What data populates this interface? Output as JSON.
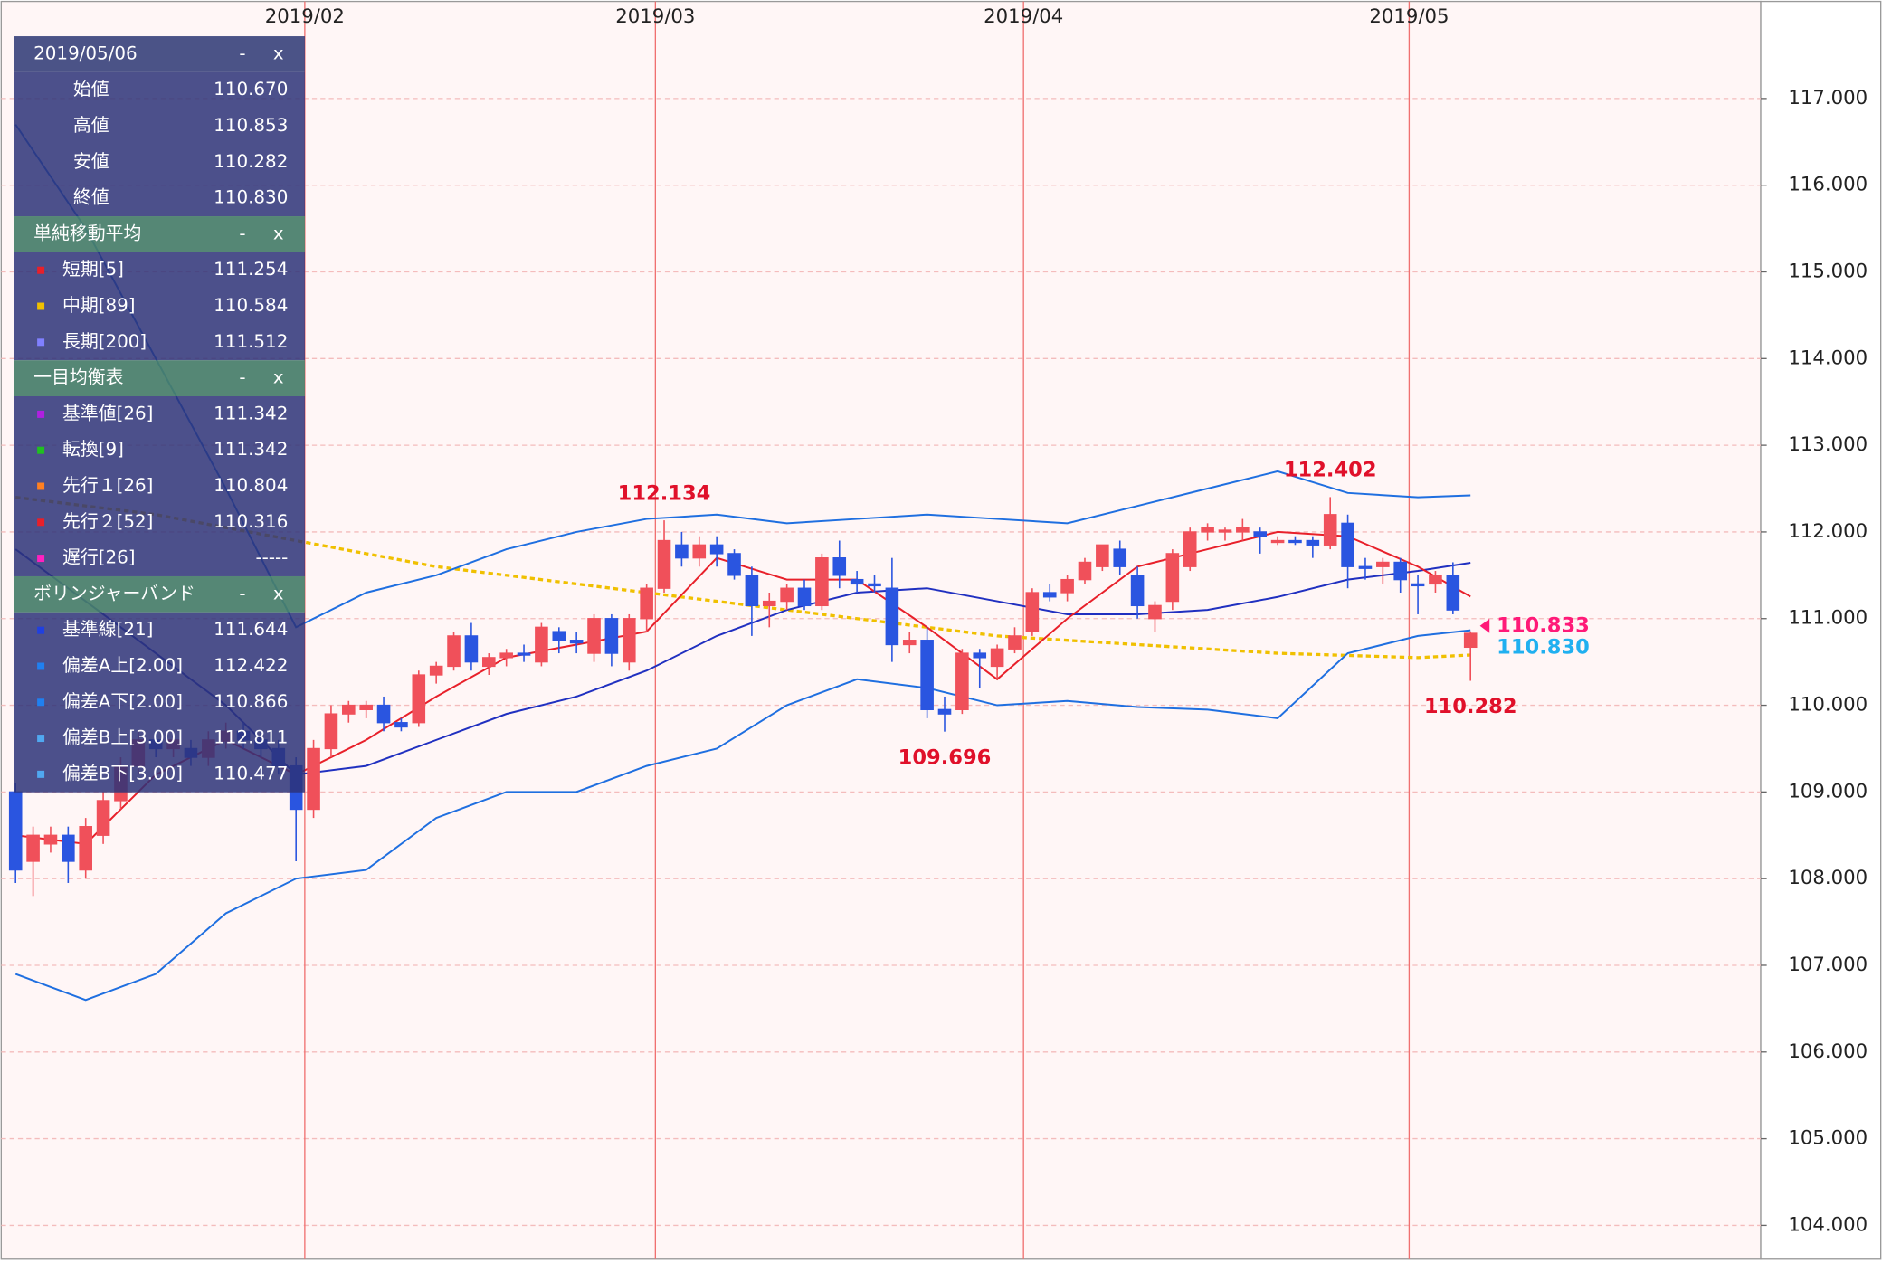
{
  "chart_data": {
    "type": "candlestick",
    "xlim": [
      -0.82,
      99.56
    ],
    "ylim": [
      103.61,
      118.12
    ],
    "xticks": [
      {
        "value": 16.5,
        "label": "2019/02"
      },
      {
        "value": 36.5,
        "label": "2019/03"
      },
      {
        "value": 57.5,
        "label": "2019/04"
      },
      {
        "value": 79.5,
        "label": "2019/05"
      }
    ],
    "yticks": [
      {
        "value": 104,
        "label": "104.000"
      },
      {
        "value": 105,
        "label": "105.000"
      },
      {
        "value": 106,
        "label": "106.000"
      },
      {
        "value": 107,
        "label": "107.000"
      },
      {
        "value": 108,
        "label": "108.000"
      },
      {
        "value": 109,
        "label": "109.000"
      },
      {
        "value": 110,
        "label": "110.000"
      },
      {
        "value": 111,
        "label": "111.000"
      },
      {
        "value": 112,
        "label": "112.000"
      },
      {
        "value": 113,
        "label": "113.000"
      },
      {
        "value": 114,
        "label": "114.000"
      },
      {
        "value": 115,
        "label": "115.000"
      },
      {
        "value": 116,
        "label": "116.000"
      },
      {
        "value": 117,
        "label": "117.000"
      }
    ],
    "grid": true,
    "up_color": "#f0505a",
    "down_color": "#2a55e0",
    "ohlc": [
      [
        109.0,
        109.1,
        107.95,
        108.1
      ],
      [
        108.2,
        108.6,
        107.8,
        108.5
      ],
      [
        108.4,
        108.6,
        108.3,
        108.5
      ],
      [
        108.5,
        108.6,
        107.95,
        108.2
      ],
      [
        108.1,
        108.7,
        108.0,
        108.6
      ],
      [
        108.5,
        109.0,
        108.4,
        108.9
      ],
      [
        108.9,
        109.4,
        108.8,
        109.3
      ],
      [
        109.3,
        109.7,
        109.2,
        109.6
      ],
      [
        109.6,
        109.7,
        109.4,
        109.5
      ],
      [
        109.5,
        109.7,
        109.4,
        109.6
      ],
      [
        109.5,
        109.6,
        109.3,
        109.4
      ],
      [
        109.4,
        109.7,
        109.3,
        109.6
      ],
      [
        109.6,
        109.8,
        109.5,
        109.7
      ],
      [
        109.7,
        109.8,
        109.5,
        109.6
      ],
      [
        109.6,
        109.7,
        109.4,
        109.5
      ],
      [
        109.5,
        109.6,
        109.2,
        109.3
      ],
      [
        109.3,
        109.4,
        108.2,
        108.8
      ],
      [
        108.8,
        109.6,
        108.7,
        109.5
      ],
      [
        109.5,
        110.0,
        109.4,
        109.9
      ],
      [
        109.9,
        110.05,
        109.8,
        110.0
      ],
      [
        109.95,
        110.05,
        109.85,
        110.0
      ],
      [
        110.0,
        110.1,
        109.7,
        109.8
      ],
      [
        109.8,
        109.85,
        109.7,
        109.75
      ],
      [
        109.8,
        110.4,
        109.75,
        110.35
      ],
      [
        110.35,
        110.5,
        110.25,
        110.45
      ],
      [
        110.45,
        110.85,
        110.4,
        110.8
      ],
      [
        110.8,
        110.95,
        110.4,
        110.5
      ],
      [
        110.45,
        110.6,
        110.35,
        110.55
      ],
      [
        110.55,
        110.65,
        110.45,
        110.6
      ],
      [
        110.6,
        110.7,
        110.5,
        110.58
      ],
      [
        110.5,
        110.95,
        110.45,
        110.9
      ],
      [
        110.85,
        110.9,
        110.6,
        110.75
      ],
      [
        110.75,
        110.85,
        110.6,
        110.72
      ],
      [
        110.6,
        111.05,
        110.5,
        111.0
      ],
      [
        111.0,
        111.05,
        110.45,
        110.6
      ],
      [
        110.5,
        111.05,
        110.4,
        111.0
      ],
      [
        111.0,
        111.4,
        110.85,
        111.35
      ],
      [
        111.35,
        112.134,
        111.3,
        111.9
      ],
      [
        111.85,
        112.0,
        111.6,
        111.7
      ],
      [
        111.7,
        111.95,
        111.6,
        111.85
      ],
      [
        111.85,
        111.95,
        111.6,
        111.75
      ],
      [
        111.75,
        111.8,
        111.45,
        111.5
      ],
      [
        111.5,
        111.6,
        110.8,
        111.15
      ],
      [
        111.15,
        111.3,
        110.9,
        111.2
      ],
      [
        111.2,
        111.4,
        111.1,
        111.35
      ],
      [
        111.35,
        111.45,
        111.1,
        111.15
      ],
      [
        111.15,
        111.75,
        111.1,
        111.7
      ],
      [
        111.7,
        111.9,
        111.35,
        111.5
      ],
      [
        111.45,
        111.55,
        111.3,
        111.4
      ],
      [
        111.4,
        111.5,
        111.3,
        111.38
      ],
      [
        111.35,
        111.7,
        110.5,
        110.7
      ],
      [
        110.7,
        110.85,
        110.6,
        110.75
      ],
      [
        110.75,
        110.9,
        109.85,
        109.95
      ],
      [
        109.95,
        110.1,
        109.696,
        109.9
      ],
      [
        109.95,
        110.65,
        109.9,
        110.6
      ],
      [
        110.6,
        110.65,
        110.2,
        110.55
      ],
      [
        110.45,
        110.7,
        110.3,
        110.65
      ],
      [
        110.65,
        110.9,
        110.6,
        110.8
      ],
      [
        110.85,
        111.35,
        110.8,
        111.3
      ],
      [
        111.3,
        111.4,
        111.2,
        111.25
      ],
      [
        111.3,
        111.5,
        111.2,
        111.45
      ],
      [
        111.45,
        111.7,
        111.4,
        111.65
      ],
      [
        111.6,
        111.85,
        111.55,
        111.85
      ],
      [
        111.8,
        111.9,
        111.5,
        111.6
      ],
      [
        111.5,
        111.6,
        111.0,
        111.15
      ],
      [
        111.0,
        111.2,
        110.85,
        111.15
      ],
      [
        111.2,
        111.8,
        111.1,
        111.75
      ],
      [
        111.6,
        112.05,
        111.55,
        112.0
      ],
      [
        112.0,
        112.1,
        111.9,
        112.05
      ],
      [
        112.0,
        112.05,
        111.9,
        112.02
      ],
      [
        112.0,
        112.15,
        111.9,
        112.05
      ],
      [
        112.0,
        112.05,
        111.75,
        111.95
      ],
      [
        111.9,
        111.95,
        111.85,
        111.9
      ],
      [
        111.9,
        111.95,
        111.85,
        111.88
      ],
      [
        111.9,
        111.95,
        111.7,
        111.85
      ],
      [
        111.85,
        112.402,
        111.8,
        112.2
      ],
      [
        112.1,
        112.2,
        111.35,
        111.6
      ],
      [
        111.6,
        111.7,
        111.45,
        111.58
      ],
      [
        111.6,
        111.7,
        111.4,
        111.65
      ],
      [
        111.65,
        111.7,
        111.3,
        111.45
      ],
      [
        111.4,
        111.5,
        111.05,
        111.38
      ],
      [
        111.4,
        111.55,
        111.3,
        111.5
      ],
      [
        111.5,
        111.65,
        111.05,
        111.1
      ],
      [
        110.67,
        110.853,
        110.282,
        110.83
      ]
    ],
    "series": [
      {
        "color": "#f0c000",
        "dashed": true,
        "x": [
          0,
          8,
          16,
          24,
          32,
          40,
          48,
          56,
          64,
          72,
          80,
          83
        ],
        "values": [
          112.4,
          112.2,
          111.9,
          111.6,
          111.4,
          111.2,
          111.0,
          110.8,
          110.7,
          110.6,
          110.55,
          110.58
        ]
      },
      {
        "color": "#2030c0",
        "x": [
          0,
          4,
          8,
          12,
          16,
          20,
          24,
          28,
          32,
          36,
          40,
          44,
          48,
          52,
          56,
          60,
          64,
          68,
          72,
          76,
          80,
          83
        ],
        "values": [
          111.8,
          111.2,
          110.6,
          110.0,
          109.2,
          109.3,
          109.6,
          109.9,
          110.1,
          110.4,
          110.8,
          111.1,
          111.3,
          111.35,
          111.2,
          111.05,
          111.05,
          111.1,
          111.25,
          111.45,
          111.55,
          111.644
        ]
      },
      {
        "color": "#1f6fe0",
        "x": [
          0,
          4,
          8,
          12,
          16,
          20,
          24,
          28,
          32,
          36,
          40,
          44,
          48,
          52,
          56,
          60,
          64,
          68,
          72,
          76,
          80,
          83
        ],
        "values": [
          116.7,
          115.5,
          114.0,
          112.5,
          110.9,
          111.3,
          111.5,
          111.8,
          112.0,
          112.15,
          112.2,
          112.1,
          112.15,
          112.2,
          112.15,
          112.1,
          112.3,
          112.5,
          112.7,
          112.45,
          112.4,
          112.422
        ]
      },
      {
        "color": "#1f6fe0",
        "x": [
          0,
          4,
          8,
          12,
          16,
          20,
          24,
          28,
          32,
          36,
          40,
          44,
          48,
          52,
          56,
          60,
          64,
          68,
          72,
          76,
          80,
          83
        ],
        "values": [
          106.9,
          106.6,
          106.9,
          107.6,
          108.0,
          108.1,
          108.7,
          109.0,
          109.0,
          109.3,
          109.5,
          110.0,
          110.3,
          110.2,
          110.0,
          110.05,
          109.98,
          109.95,
          109.85,
          110.6,
          110.8,
          110.866
        ]
      },
      {
        "color": "#e8202a",
        "x": [
          0,
          4,
          8,
          12,
          16,
          20,
          24,
          28,
          32,
          36,
          40,
          44,
          48,
          52,
          56,
          60,
          64,
          68,
          72,
          76,
          80,
          83
        ],
        "values": [
          108.5,
          108.4,
          109.2,
          109.6,
          109.2,
          109.6,
          110.1,
          110.55,
          110.7,
          110.85,
          111.7,
          111.45,
          111.45,
          110.9,
          110.3,
          111.0,
          111.6,
          111.8,
          112.0,
          111.95,
          111.6,
          111.254
        ]
      }
    ],
    "annotations": [
      {
        "index": 37,
        "value": 112.134,
        "label": "112.134"
      },
      {
        "index": 75,
        "value": 112.402,
        "label": "112.402"
      },
      {
        "index": 53,
        "value": 109.696,
        "label": "109.696"
      },
      {
        "index": 83,
        "value": 110.282,
        "label": "110.282"
      }
    ],
    "annotation_color": "#e0102a",
    "price_markers": [
      {
        "value": 110.833,
        "label": "110.833",
        "color": "#ff1a78"
      },
      {
        "value": 110.83,
        "label": "110.830",
        "color": "#20b0f0"
      }
    ]
  },
  "panel": {
    "controls": [
      "-",
      "x"
    ],
    "sections": [
      {
        "title": "2019/05/06",
        "rows": [
          {
            "label": "始値",
            "value": "110.670"
          },
          {
            "label": "高値",
            "value": "110.853"
          },
          {
            "label": "安値",
            "value": "110.282"
          },
          {
            "label": "終値",
            "value": "110.830"
          }
        ]
      },
      {
        "title": "単純移動平均",
        "rows": [
          {
            "label": "短期[5]",
            "value": "111.254",
            "color": "#e8202a"
          },
          {
            "label": "中期[89]",
            "value": "110.584",
            "color": "#f0c000"
          },
          {
            "label": "長期[200]",
            "value": "111.512",
            "color": "#8080ff"
          }
        ]
      },
      {
        "title": "一目均衡表",
        "rows": [
          {
            "label": "基準値[26]",
            "value": "111.342",
            "color": "#b020e0"
          },
          {
            "label": "転換[9]",
            "value": "111.342",
            "color": "#20c020"
          },
          {
            "label": "先行１[26]",
            "value": "110.804",
            "color": "#ff8020"
          },
          {
            "label": "先行２[52]",
            "value": "110.316",
            "color": "#e8202a"
          },
          {
            "label": "遅行[26]",
            "value": "-----",
            "color": "#ff20c0"
          }
        ]
      },
      {
        "title": "ボリンジャーバンド",
        "rows": [
          {
            "label": "基準線[21]",
            "value": "111.644",
            "color": "#2040e0"
          },
          {
            "label": "偏差A上[2.00]",
            "value": "112.422",
            "color": "#2080f0"
          },
          {
            "label": "偏差A下[2.00]",
            "value": "110.866",
            "color": "#2080f0"
          },
          {
            "label": "偏差B上[3.00]",
            "value": "112.811",
            "color": "#50a8f0"
          },
          {
            "label": "偏差B下[3.00]",
            "value": "110.477",
            "color": "#50a8f0"
          }
        ]
      }
    ]
  }
}
